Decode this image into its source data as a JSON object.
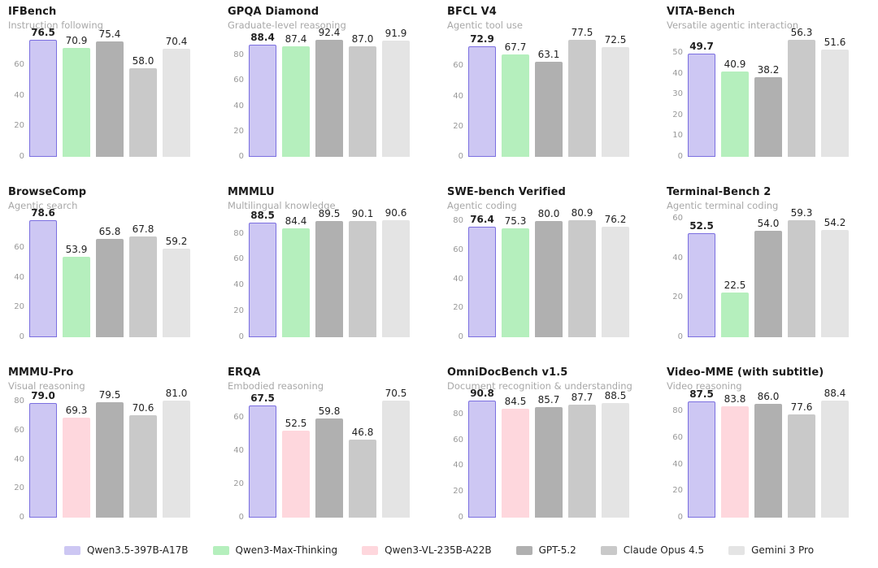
{
  "page": {
    "background": "#ffffff"
  },
  "palette": {
    "qwen35_fill": "#cdc7f3",
    "qwen35_edge": "#7b6fe0",
    "qwenmax": "#b5efbd",
    "qwenvl": "#fed7dd",
    "gpt": "#b0b0b0",
    "claude": "#c9c9c9",
    "gemini": "#e4e4e4"
  },
  "legend": {
    "items": [
      {
        "label": "Qwen3.5-397B-A17B",
        "color": "qwen35"
      },
      {
        "label": "Qwen3-Max-Thinking",
        "color": "qwenmax"
      },
      {
        "label": "Qwen3-VL-235B-A22B",
        "color": "qwenvl"
      },
      {
        "label": "GPT-5.2",
        "color": "gpt"
      },
      {
        "label": "Claude Opus 4.5",
        "color": "claude"
      },
      {
        "label": "Gemini 3 Pro",
        "color": "gemini"
      }
    ]
  },
  "chart_data": [
    {
      "type": "bar",
      "title": "IFBench",
      "subtitle": "Instruction following",
      "categories": [
        "Qwen3.5-397B-A17B",
        "Qwen3-Max-Thinking",
        "GPT-5.2",
        "Claude Opus 4.5",
        "Gemini 3 Pro"
      ],
      "values": [
        76.5,
        70.9,
        75.4,
        58.0,
        70.4
      ],
      "colors": [
        "qwen35",
        "qwenmax",
        "gpt",
        "claude",
        "gemini"
      ],
      "yticks": [
        0,
        20,
        40,
        60
      ],
      "ylim": [
        0,
        79.6
      ],
      "highlight_index": 0,
      "grid": false,
      "legend_position": "bottom-shared"
    },
    {
      "type": "bar",
      "title": "GPQA Diamond",
      "subtitle": "Graduate-level reasoning",
      "categories": [
        "Qwen3.5-397B-A17B",
        "Qwen3-Max-Thinking",
        "GPT-5.2",
        "Claude Opus 4.5",
        "Gemini 3 Pro"
      ],
      "values": [
        88.4,
        87.4,
        92.4,
        87.0,
        91.9
      ],
      "colors": [
        "qwen35",
        "qwenmax",
        "gpt",
        "claude",
        "gemini"
      ],
      "yticks": [
        0,
        20,
        40,
        60,
        80
      ],
      "ylim": [
        0,
        96.1
      ],
      "highlight_index": 0,
      "grid": false,
      "legend_position": "bottom-shared"
    },
    {
      "type": "bar",
      "title": "BFCL V4",
      "subtitle": "Agentic tool use",
      "categories": [
        "Qwen3.5-397B-A17B",
        "Qwen3-Max-Thinking",
        "GPT-5.2",
        "Claude Opus 4.5",
        "Gemini 3 Pro"
      ],
      "values": [
        72.9,
        67.7,
        63.1,
        77.5,
        72.5
      ],
      "colors": [
        "qwen35",
        "qwenmax",
        "gpt",
        "claude",
        "gemini"
      ],
      "yticks": [
        0,
        20,
        40,
        60
      ],
      "ylim": [
        0,
        80.6
      ],
      "highlight_index": 0,
      "grid": false,
      "legend_position": "bottom-shared"
    },
    {
      "type": "bar",
      "title": "VITA-Bench",
      "subtitle": "Versatile agentic interaction",
      "categories": [
        "Qwen3.5-397B-A17B",
        "Qwen3-Max-Thinking",
        "GPT-5.2",
        "Claude Opus 4.5",
        "Gemini 3 Pro"
      ],
      "values": [
        49.7,
        40.9,
        38.2,
        56.3,
        51.6
      ],
      "colors": [
        "qwen35",
        "qwenmax",
        "gpt",
        "claude",
        "gemini"
      ],
      "yticks": [
        0,
        10,
        20,
        30,
        40,
        50
      ],
      "ylim": [
        0,
        58.6
      ],
      "highlight_index": 0,
      "grid": false,
      "legend_position": "bottom-shared"
    },
    {
      "type": "bar",
      "title": "BrowseComp",
      "subtitle": "Agentic search",
      "categories": [
        "Qwen3.5-397B-A17B",
        "Qwen3-Max-Thinking",
        "GPT-5.2",
        "Claude Opus 4.5",
        "Gemini 3 Pro"
      ],
      "values": [
        78.6,
        53.9,
        65.8,
        67.8,
        59.2
      ],
      "colors": [
        "qwen35",
        "qwenmax",
        "gpt",
        "claude",
        "gemini"
      ],
      "yticks": [
        0,
        20,
        40,
        60
      ],
      "ylim": [
        0,
        81.7
      ],
      "highlight_index": 0,
      "grid": false,
      "legend_position": "bottom-shared"
    },
    {
      "type": "bar",
      "title": "MMMLU",
      "subtitle": "Multilingual knowledge",
      "categories": [
        "Qwen3.5-397B-A17B",
        "Qwen3-Max-Thinking",
        "GPT-5.2",
        "Claude Opus 4.5",
        "Gemini 3 Pro"
      ],
      "values": [
        88.5,
        84.4,
        89.5,
        90.1,
        90.6
      ],
      "colors": [
        "qwen35",
        "qwenmax",
        "gpt",
        "claude",
        "gemini"
      ],
      "yticks": [
        0,
        20,
        40,
        60,
        80
      ],
      "ylim": [
        0,
        94.2
      ],
      "highlight_index": 0,
      "grid": false,
      "legend_position": "bottom-shared"
    },
    {
      "type": "bar",
      "title": "SWE-bench Verified",
      "subtitle": "Agentic coding",
      "categories": [
        "Qwen3.5-397B-A17B",
        "Qwen3-Max-Thinking",
        "GPT-5.2",
        "Claude Opus 4.5",
        "Gemini 3 Pro"
      ],
      "values": [
        76.4,
        75.3,
        80.0,
        80.9,
        76.2
      ],
      "colors": [
        "qwen35",
        "qwenmax",
        "gpt",
        "claude",
        "gemini"
      ],
      "yticks": [
        0,
        20,
        40,
        60,
        80
      ],
      "ylim": [
        0,
        84.1
      ],
      "highlight_index": 0,
      "grid": false,
      "legend_position": "bottom-shared"
    },
    {
      "type": "bar",
      "title": "Terminal-Bench 2",
      "subtitle": "Agentic terminal coding",
      "categories": [
        "Qwen3.5-397B-A17B",
        "Qwen3-Max-Thinking",
        "GPT-5.2",
        "Claude Opus 4.5",
        "Gemini 3 Pro"
      ],
      "values": [
        52.5,
        22.5,
        54.0,
        59.3,
        54.2
      ],
      "colors": [
        "qwen35",
        "qwenmax",
        "gpt",
        "claude",
        "gemini"
      ],
      "yticks": [
        0,
        20,
        40,
        60
      ],
      "ylim": [
        0,
        61.7
      ],
      "highlight_index": 0,
      "grid": false,
      "legend_position": "bottom-shared"
    },
    {
      "type": "bar",
      "title": "MMMU-Pro",
      "subtitle": "Visual reasoning",
      "categories": [
        "Qwen3.5-397B-A17B",
        "Qwen3-VL-235B-A22B",
        "GPT-5.2",
        "Claude Opus 4.5",
        "Gemini 3 Pro"
      ],
      "values": [
        79.0,
        69.3,
        79.5,
        70.6,
        81.0
      ],
      "colors": [
        "qwen35",
        "qwenvl",
        "gpt",
        "claude",
        "gemini"
      ],
      "yticks": [
        0,
        20,
        40,
        60,
        80
      ],
      "ylim": [
        0,
        84.2
      ],
      "highlight_index": 0,
      "grid": false,
      "legend_position": "bottom-shared"
    },
    {
      "type": "bar",
      "title": "ERQA",
      "subtitle": "Embodied reasoning",
      "categories": [
        "Qwen3.5-397B-A17B",
        "Qwen3-VL-235B-A22B",
        "GPT-5.2",
        "Claude Opus 4.5",
        "Gemini 3 Pro"
      ],
      "values": [
        67.5,
        52.5,
        59.8,
        46.8,
        70.5
      ],
      "colors": [
        "qwen35",
        "qwenvl",
        "gpt",
        "claude",
        "gemini"
      ],
      "yticks": [
        0,
        20,
        40,
        60
      ],
      "ylim": [
        0,
        73.3
      ],
      "highlight_index": 0,
      "grid": false,
      "legend_position": "bottom-shared"
    },
    {
      "type": "bar",
      "title": "OmniDocBench v1.5",
      "subtitle": "Document recognition & understanding",
      "categories": [
        "Qwen3.5-397B-A17B",
        "Qwen3-VL-235B-A22B",
        "GPT-5.2",
        "Claude Opus 4.5",
        "Gemini 3 Pro"
      ],
      "values": [
        90.8,
        84.5,
        85.7,
        87.7,
        88.5
      ],
      "colors": [
        "qwen35",
        "qwenvl",
        "gpt",
        "claude",
        "gemini"
      ],
      "yticks": [
        0,
        20,
        40,
        60,
        80
      ],
      "ylim": [
        0,
        94.4
      ],
      "highlight_index": 0,
      "grid": false,
      "legend_position": "bottom-shared"
    },
    {
      "type": "bar",
      "title": "Video-MME (with subtitle)",
      "subtitle": "Video reasoning",
      "categories": [
        "Qwen3.5-397B-A17B",
        "Qwen3-VL-235B-A22B",
        "GPT-5.2",
        "Claude Opus 4.5",
        "Gemini 3 Pro"
      ],
      "values": [
        87.5,
        83.8,
        86.0,
        77.6,
        88.4
      ],
      "colors": [
        "qwen35",
        "qwenvl",
        "gpt",
        "claude",
        "gemini"
      ],
      "yticks": [
        0,
        20,
        40,
        60,
        80
      ],
      "ylim": [
        0,
        91.9
      ],
      "highlight_index": 0,
      "grid": false,
      "legend_position": "bottom-shared"
    }
  ]
}
